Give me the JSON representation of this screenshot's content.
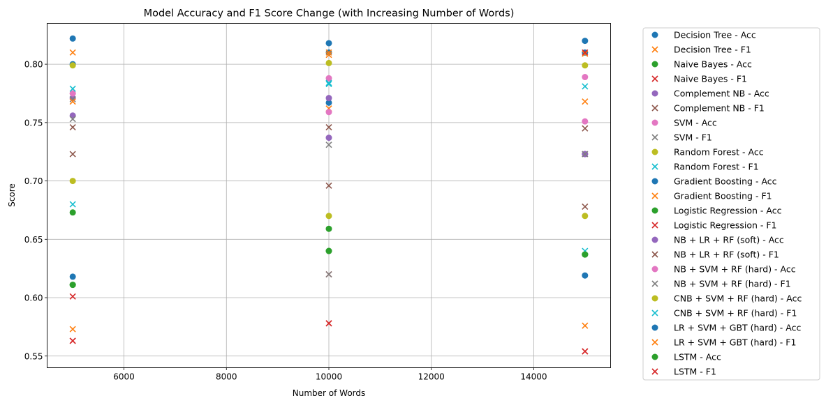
{
  "chart_data": {
    "type": "scatter",
    "title": "Model Accuracy and F1 Score Change (with Increasing Number of Words)",
    "xlabel": "Number of Words",
    "ylabel": "Score",
    "xlim": [
      4500,
      15500
    ],
    "ylim": [
      0.54,
      0.835
    ],
    "x_ticks": [
      6000,
      8000,
      10000,
      12000,
      14000
    ],
    "y_ticks": [
      0.55,
      0.6,
      0.65,
      0.7,
      0.75,
      0.8
    ],
    "grid": true,
    "legend_position": "outside-right",
    "x": [
      5000,
      10000,
      15000
    ],
    "series": [
      {
        "name": "Decision Tree - Acc",
        "marker": "circle",
        "color": "#1f77b4",
        "values": [
          0.8,
          0.81,
          0.81
        ]
      },
      {
        "name": "Decision Tree - F1",
        "marker": "x",
        "color": "#ff7f0e",
        "values": [
          0.81,
          0.808,
          0.809
        ]
      },
      {
        "name": "Naive Bayes - Acc",
        "marker": "circle",
        "color": "#2ca02c",
        "values": [
          0.673,
          0.64,
          0.637
        ]
      },
      {
        "name": "Naive Bayes - F1",
        "marker": "x",
        "color": "#d62728",
        "values": [
          0.601,
          0.62,
          0.554
        ]
      },
      {
        "name": "Complement NB - Acc",
        "marker": "circle",
        "color": "#9467bd",
        "values": [
          0.756,
          0.737,
          0.723
        ]
      },
      {
        "name": "Complement NB - F1",
        "marker": "x",
        "color": "#8c564b",
        "values": [
          0.723,
          0.696,
          0.678
        ]
      },
      {
        "name": "SVM - Acc",
        "marker": "circle",
        "color": "#e377c2",
        "values": [
          0.775,
          0.788,
          0.789
        ]
      },
      {
        "name": "SVM - F1",
        "marker": "x",
        "color": "#7f7f7f",
        "values": [
          0.753,
          0.731,
          0.723
        ]
      },
      {
        "name": "Random Forest - Acc",
        "marker": "circle",
        "color": "#bcbd22",
        "values": [
          0.7,
          0.67,
          0.67
        ]
      },
      {
        "name": "Random Forest - F1",
        "marker": "x",
        "color": "#17becf",
        "values": [
          0.68,
          0.783,
          0.64
        ]
      },
      {
        "name": "Gradient Boosting - Acc",
        "marker": "circle",
        "color": "#1f77b4",
        "values": [
          0.618,
          0.767,
          0.619
        ]
      },
      {
        "name": "Gradient Boosting - F1",
        "marker": "x",
        "color": "#ff7f0e",
        "values": [
          0.573,
          0.762,
          0.576
        ]
      },
      {
        "name": "Logistic Regression - Acc",
        "marker": "circle",
        "color": "#2ca02c",
        "values": [
          0.611,
          0.659,
          0.637
        ]
      },
      {
        "name": "Logistic Regression - F1",
        "marker": "x",
        "color": "#d62728",
        "values": [
          0.563,
          0.578,
          0.554
        ]
      },
      {
        "name": "NB + LR + RF (soft) - Acc",
        "marker": "circle",
        "color": "#9467bd",
        "values": [
          0.771,
          0.771,
          0.723
        ]
      },
      {
        "name": "NB + LR + RF (soft) - F1",
        "marker": "x",
        "color": "#8c564b",
        "values": [
          0.746,
          0.746,
          0.745
        ]
      },
      {
        "name": "NB + SVM + RF (hard) - Acc",
        "marker": "circle",
        "color": "#e377c2",
        "values": [
          0.775,
          0.759,
          0.751
        ]
      },
      {
        "name": "NB + SVM + RF (hard) - F1",
        "marker": "x",
        "color": "#7f7f7f",
        "values": [
          0.77,
          0.62,
          0.723
        ]
      },
      {
        "name": "CNB + SVM + RF (hard) - Acc",
        "marker": "circle",
        "color": "#bcbd22",
        "values": [
          0.799,
          0.801,
          0.799
        ]
      },
      {
        "name": "CNB + SVM + RF (hard) - F1",
        "marker": "x",
        "color": "#17becf",
        "values": [
          0.779,
          0.784,
          0.781
        ]
      },
      {
        "name": "LR + SVM + GBT (hard) - Acc",
        "marker": "circle",
        "color": "#1f77b4",
        "values": [
          0.822,
          0.818,
          0.82
        ]
      },
      {
        "name": "LR + SVM + GBT (hard) - F1",
        "marker": "x",
        "color": "#ff7f0e",
        "values": [
          0.768,
          0.81,
          0.768
        ]
      },
      {
        "name": "LSTM - Acc",
        "marker": "circle",
        "color": "#2ca02c",
        "values": [
          0.611,
          0.64,
          0.637
        ]
      },
      {
        "name": "LSTM - F1",
        "marker": "x",
        "color": "#d62728",
        "values": [
          0.563,
          0.578,
          0.81
        ]
      }
    ]
  }
}
